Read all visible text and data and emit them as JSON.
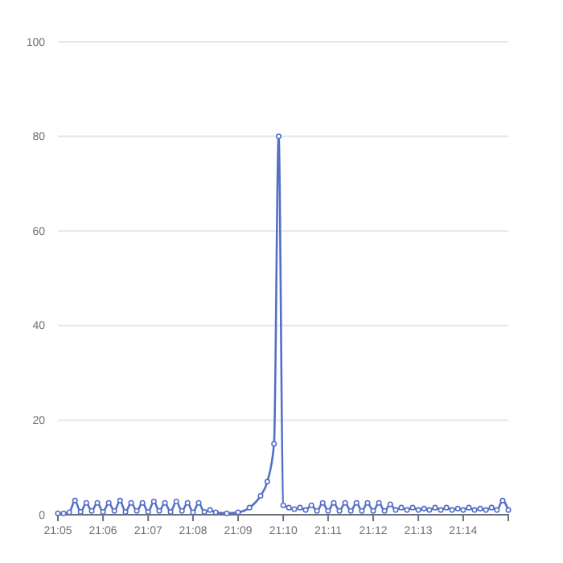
{
  "chart_data": {
    "type": "line",
    "x": [
      21.0833,
      21.0854,
      21.0875,
      21.0896,
      21.0917,
      21.0938,
      21.0958,
      21.0979,
      21.1,
      21.1021,
      21.1042,
      21.1063,
      21.1083,
      21.1104,
      21.1125,
      21.1146,
      21.1167,
      21.1188,
      21.1208,
      21.1229,
      21.125,
      21.1271,
      21.1292,
      21.1313,
      21.1333,
      21.1354,
      21.1375,
      21.1396,
      21.1417,
      21.1458,
      21.15,
      21.1542,
      21.1583,
      21.1608,
      21.1633,
      21.165,
      21.1667,
      21.1688,
      21.1708,
      21.1729,
      21.175,
      21.1771,
      21.1792,
      21.1813,
      21.1833,
      21.1854,
      21.1875,
      21.1896,
      21.1917,
      21.1938,
      21.1958,
      21.1979,
      21.2,
      21.2021,
      21.2042,
      21.2063,
      21.2083,
      21.2104,
      21.2125,
      21.2146,
      21.2167,
      21.2188,
      21.2208,
      21.2229,
      21.225,
      21.2271,
      21.2292,
      21.2313,
      21.2333,
      21.2354,
      21.2375,
      21.2396,
      21.2417,
      21.2438,
      21.2458,
      21.2479,
      21.25
    ],
    "series": [
      {
        "color": "#5470c6",
        "values": [
          0.3,
          0.3,
          0.5,
          3,
          0.6,
          2.5,
          0.8,
          2.5,
          0.6,
          2.5,
          0.8,
          3,
          0.6,
          2.5,
          0.8,
          2.5,
          0.6,
          2.8,
          0.8,
          2.5,
          0.6,
          2.8,
          0.8,
          2.5,
          0.5,
          2.5,
          0.6,
          1,
          0.5,
          0.3,
          0.5,
          1.5,
          4,
          7,
          15,
          80,
          2,
          1.5,
          1.2,
          1.5,
          1,
          2,
          0.8,
          2.5,
          0.8,
          2.5,
          0.8,
          2.5,
          0.8,
          2.5,
          0.8,
          2.5,
          0.8,
          2.5,
          0.8,
          2.2,
          1,
          1.5,
          1,
          1.5,
          1,
          1.3,
          1,
          1.5,
          1,
          1.5,
          1,
          1.3,
          1,
          1.5,
          1,
          1.3,
          1,
          1.5,
          1,
          3,
          1
        ]
      }
    ],
    "xlim": [
      21.0833,
      21.25
    ],
    "xticks": [
      {
        "value": 21.0833,
        "label": "21:05"
      },
      {
        "value": 21.1,
        "label": "21:06"
      },
      {
        "value": 21.1167,
        "label": "21:07"
      },
      {
        "value": 21.1333,
        "label": "21:08"
      },
      {
        "value": 21.15,
        "label": "21:09"
      },
      {
        "value": 21.1667,
        "label": "21:10"
      },
      {
        "value": 21.1833,
        "label": "21:11"
      },
      {
        "value": 21.2,
        "label": "21:12"
      },
      {
        "value": 21.2167,
        "label": "21:13"
      },
      {
        "value": 21.2333,
        "label": "21:14"
      }
    ],
    "ylim": [
      0,
      100
    ],
    "yticks": [
      0,
      20,
      40,
      60,
      80,
      100
    ],
    "grid": "y",
    "marker": "circle",
    "line_style": "solid"
  }
}
